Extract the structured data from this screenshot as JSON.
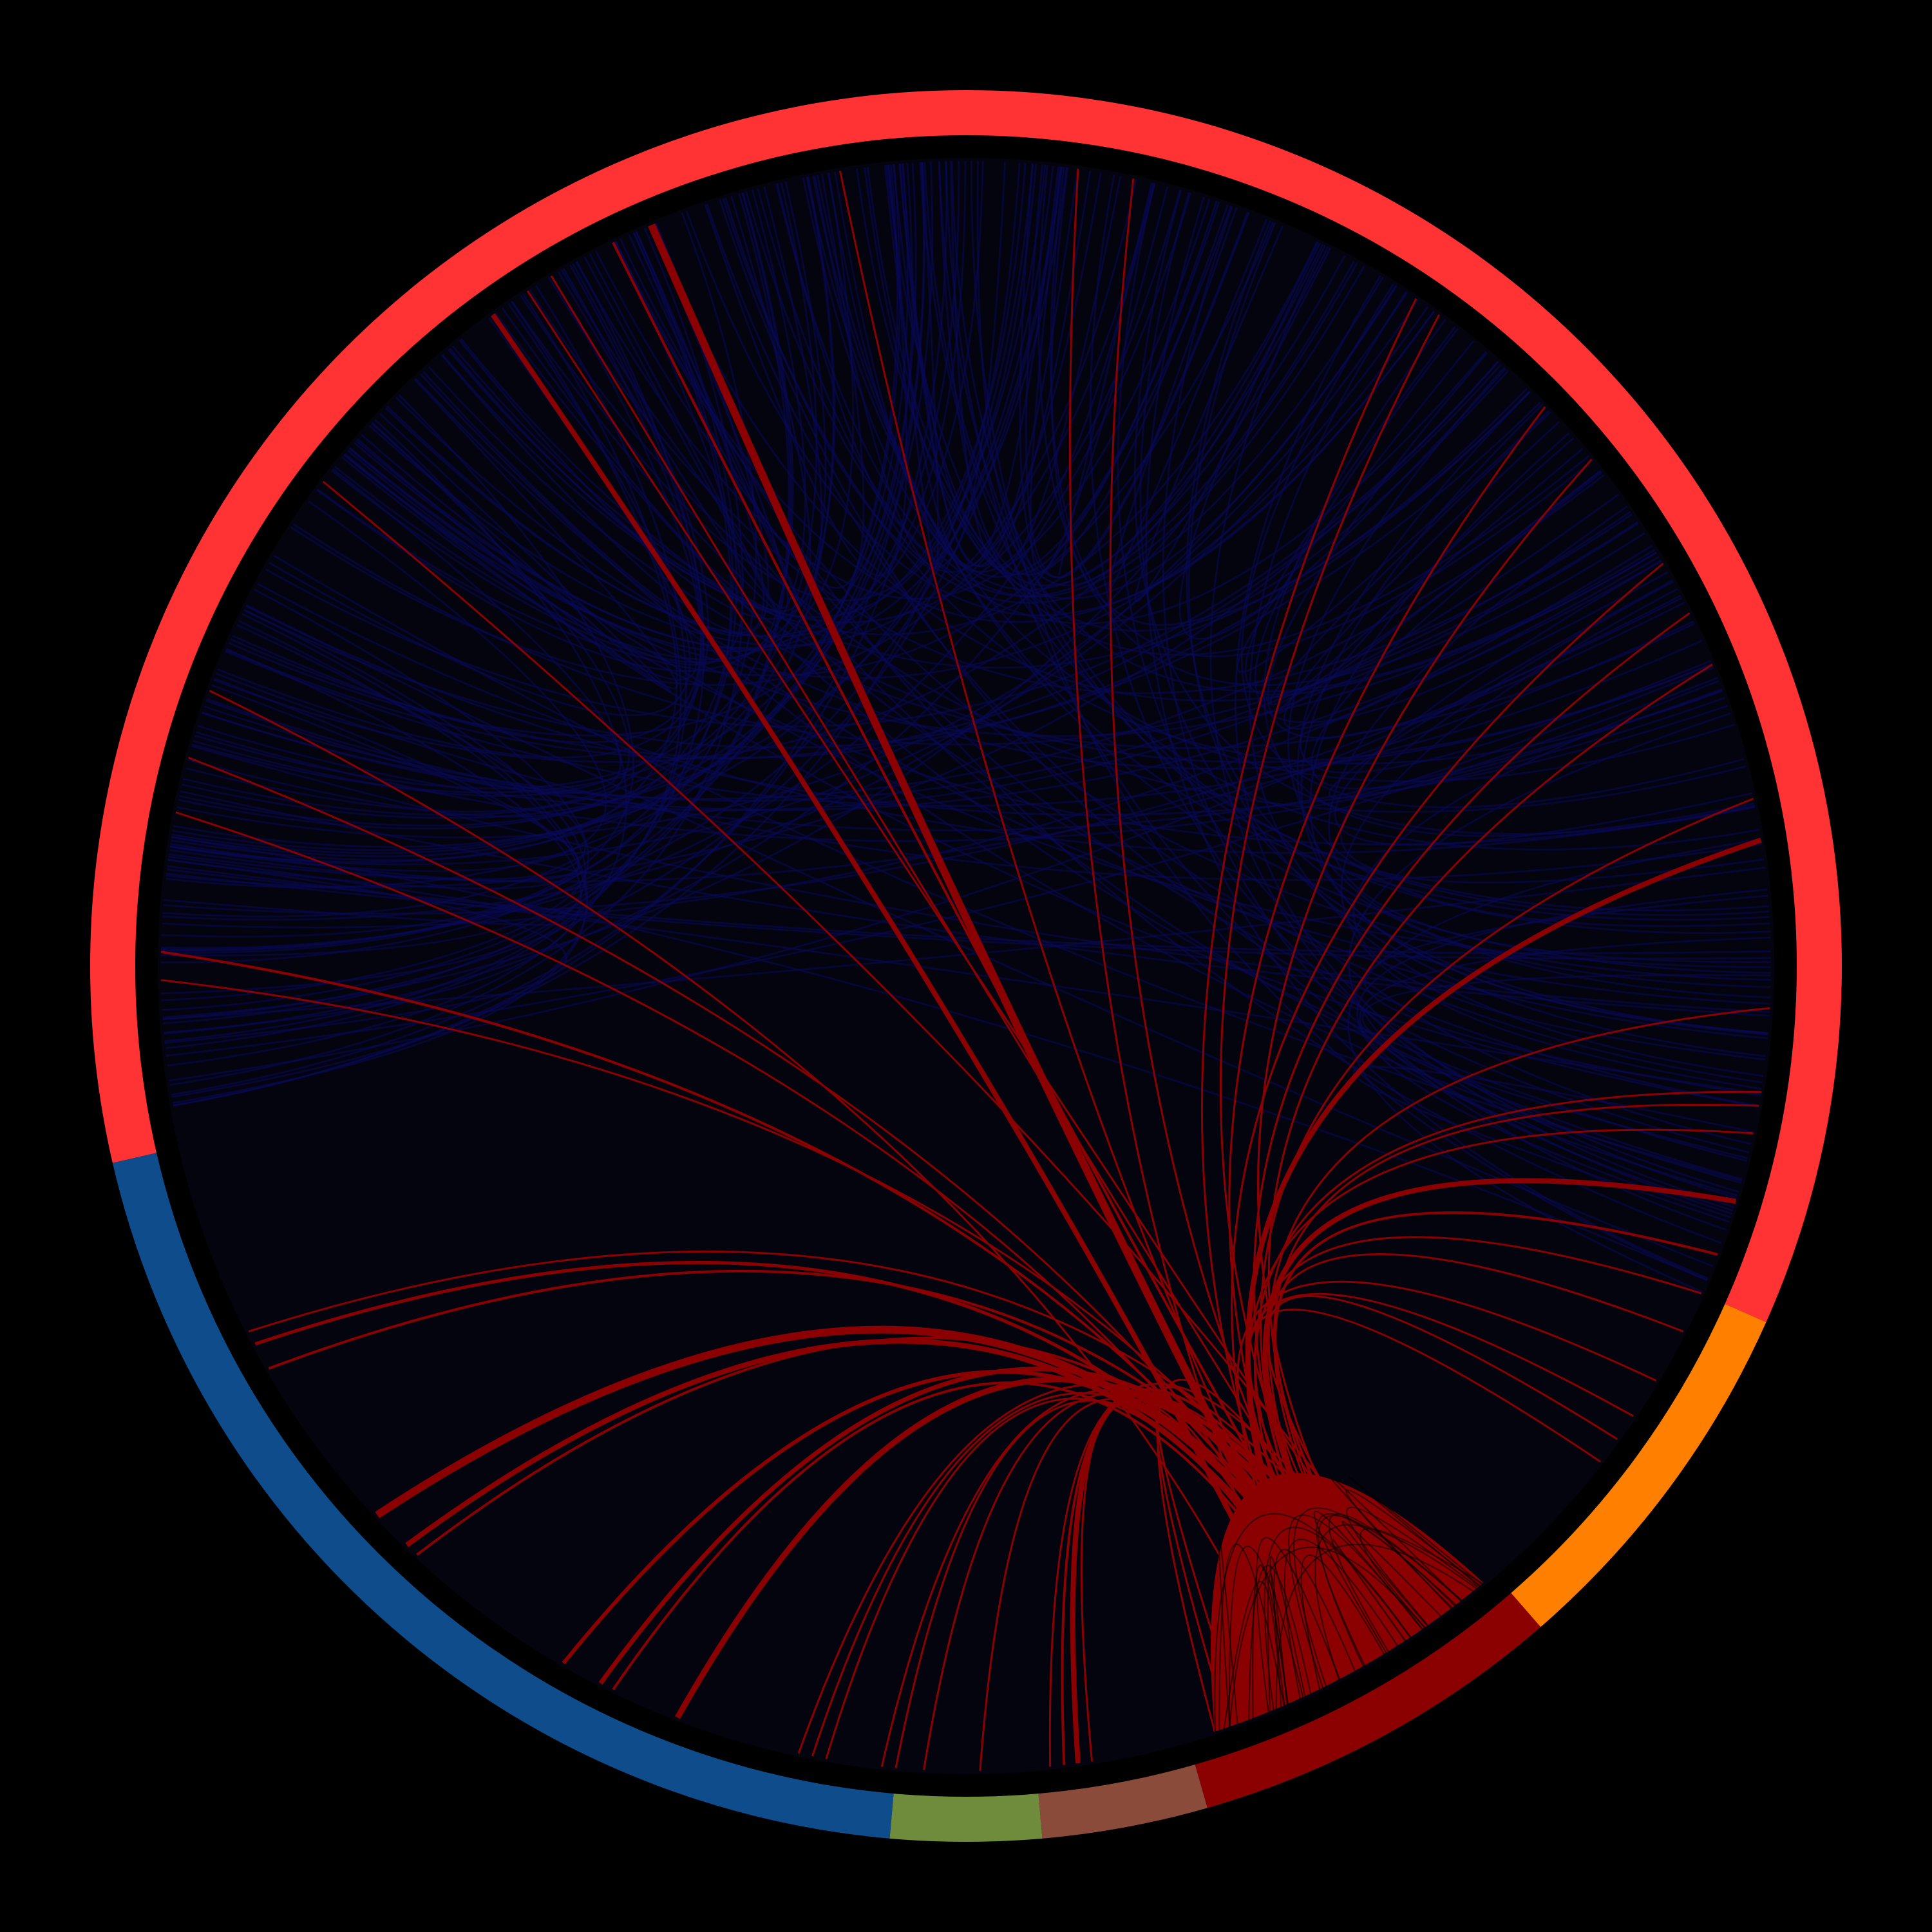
{
  "diagram": {
    "type": "chord",
    "background": "#000000",
    "inner_fill": "#04040f",
    "blue_link_color": "#0a0a5a",
    "highlight_link_color": "#8b0000",
    "segments": [
      {
        "id": "seg-red",
        "color": "#ff3333",
        "start_deg": -193,
        "end_deg": 24
      },
      {
        "id": "seg-orange",
        "color": "#ff8000",
        "start_deg": 24,
        "end_deg": 49
      },
      {
        "id": "seg-darkred",
        "color": "#8b0000",
        "start_deg": 49,
        "end_deg": 74
      },
      {
        "id": "seg-brown",
        "color": "#8b4b3b",
        "start_deg": 74,
        "end_deg": 85
      },
      {
        "id": "seg-green",
        "color": "#6e8c3c",
        "start_deg": 85,
        "end_deg": 95
      },
      {
        "id": "seg-blue",
        "color": "#0f4c8c",
        "start_deg": 95,
        "end_deg": 167
      }
    ],
    "highlight_chords": [
      {
        "from_deg": -113,
        "to_deg": 62,
        "weight": 12
      },
      {
        "from_deg": -116,
        "to_deg": 60,
        "weight": 4
      },
      {
        "from_deg": -121,
        "to_deg": 58,
        "weight": 3
      },
      {
        "from_deg": -123,
        "to_deg": 56,
        "weight": 3
      },
      {
        "from_deg": -126,
        "to_deg": 64,
        "weight": 8
      },
      {
        "from_deg": -143,
        "to_deg": 55,
        "weight": 3
      },
      {
        "from_deg": -160,
        "to_deg": 66,
        "weight": 3
      },
      {
        "from_deg": -165,
        "to_deg": 60,
        "weight": 3
      },
      {
        "from_deg": -181,
        "to_deg": 58,
        "weight": 3
      },
      {
        "from_deg": -99,
        "to_deg": 62,
        "weight": 3
      },
      {
        "from_deg": -82,
        "to_deg": 64,
        "weight": 3
      },
      {
        "from_deg": -78,
        "to_deg": 60,
        "weight": 3
      },
      {
        "from_deg": -56,
        "to_deg": 62,
        "weight": 3
      },
      {
        "from_deg": -54,
        "to_deg": 59,
        "weight": 3
      },
      {
        "from_deg": -44,
        "to_deg": 61,
        "weight": 3
      },
      {
        "from_deg": -39,
        "to_deg": 57,
        "weight": 3
      },
      {
        "from_deg": -30,
        "to_deg": 63,
        "weight": 3
      },
      {
        "from_deg": -26,
        "to_deg": 60,
        "weight": 3
      },
      {
        "from_deg": -22,
        "to_deg": 58,
        "weight": 3
      },
      {
        "from_deg": -12,
        "to_deg": 60,
        "weight": 3
      },
      {
        "from_deg": -9,
        "to_deg": 62,
        "weight": 8
      },
      {
        "from_deg": 3,
        "to_deg": 59,
        "weight": 3
      },
      {
        "from_deg": 9,
        "to_deg": 61,
        "weight": 3
      },
      {
        "from_deg": 10,
        "to_deg": 58,
        "weight": 3
      },
      {
        "from_deg": 12,
        "to_deg": 62,
        "weight": 3
      },
      {
        "from_deg": 17,
        "to_deg": 59,
        "weight": 8
      },
      {
        "from_deg": 21,
        "to_deg": 57,
        "weight": 4
      },
      {
        "from_deg": 24,
        "to_deg": 60,
        "weight": 3
      },
      {
        "from_deg": 27,
        "to_deg": 58,
        "weight": 3
      },
      {
        "from_deg": 31,
        "to_deg": 62,
        "weight": 3
      },
      {
        "from_deg": 34,
        "to_deg": 60,
        "weight": 3
      },
      {
        "from_deg": 36,
        "to_deg": 56,
        "weight": 3
      },
      {
        "from_deg": 38,
        "to_deg": 59,
        "weight": 3
      },
      {
        "from_deg": 181,
        "to_deg": 60,
        "weight": 4
      },
      {
        "from_deg": 191,
        "to_deg": 61,
        "weight": 3
      },
      {
        "from_deg": 150,
        "to_deg": 58,
        "weight": 4
      },
      {
        "from_deg": 152,
        "to_deg": 60,
        "weight": 5
      },
      {
        "from_deg": 153,
        "to_deg": 56,
        "weight": 3
      },
      {
        "from_deg": 137,
        "to_deg": 60,
        "weight": 12
      },
      {
        "from_deg": 134,
        "to_deg": 61,
        "weight": 8
      },
      {
        "from_deg": 133,
        "to_deg": 58,
        "weight": 4
      },
      {
        "from_deg": 120,
        "to_deg": 60,
        "weight": 6
      },
      {
        "from_deg": 117,
        "to_deg": 57,
        "weight": 7
      },
      {
        "from_deg": 116,
        "to_deg": 62,
        "weight": 4
      },
      {
        "from_deg": 111,
        "to_deg": 58,
        "weight": 9
      },
      {
        "from_deg": 102,
        "to_deg": 57,
        "weight": 3
      },
      {
        "from_deg": 101,
        "to_deg": 60,
        "weight": 3
      },
      {
        "from_deg": 100,
        "to_deg": 62,
        "weight": 3
      },
      {
        "from_deg": 96,
        "to_deg": 58,
        "weight": 3
      },
      {
        "from_deg": 95,
        "to_deg": 62,
        "weight": 3
      },
      {
        "from_deg": 93,
        "to_deg": 59,
        "weight": 3
      },
      {
        "from_deg": 89,
        "to_deg": 61,
        "weight": 3
      },
      {
        "from_deg": 84,
        "to_deg": 56,
        "weight": 3
      },
      {
        "from_deg": 83,
        "to_deg": 58,
        "weight": 4
      },
      {
        "from_deg": 82,
        "to_deg": 60,
        "weight": 8
      },
      {
        "from_deg": 81,
        "to_deg": 62,
        "weight": 3
      },
      {
        "from_deg": 72,
        "to_deg": 57,
        "weight": 3
      },
      {
        "from_deg": 71,
        "to_deg": 60,
        "weight": 3
      },
      {
        "from_deg": 70,
        "to_deg": 62,
        "weight": 3
      }
    ],
    "background_chord_count": 220
  }
}
